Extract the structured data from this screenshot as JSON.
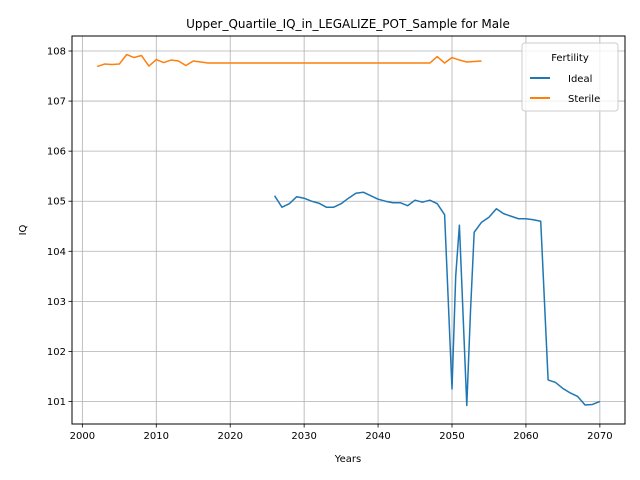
{
  "chart_data": {
    "type": "line",
    "title": "Upper_Quartile_IQ_in_LEGALIZE_POT_Sample for Male",
    "xlabel": "Years",
    "ylabel": "IQ",
    "xlim": [
      1998.6,
      2073.4
    ],
    "ylim": [
      100.55,
      108.3
    ],
    "xticks": [
      2000,
      2010,
      2020,
      2030,
      2040,
      2050,
      2060,
      2070
    ],
    "yticks": [
      101,
      102,
      103,
      104,
      105,
      106,
      107,
      108
    ],
    "grid": true,
    "legend": {
      "title": "Fertility",
      "placement": "top-right"
    },
    "series": [
      {
        "name": "Ideal",
        "color": "#1f77b4",
        "points": [
          [
            2026,
            105.11
          ],
          [
            2027,
            104.88
          ],
          [
            2028,
            104.95
          ],
          [
            2029,
            105.09
          ],
          [
            2030,
            105.06
          ],
          [
            2031,
            105.0
          ],
          [
            2032,
            104.96
          ],
          [
            2033,
            104.88
          ],
          [
            2034,
            104.88
          ],
          [
            2035,
            104.95
          ],
          [
            2036,
            105.06
          ],
          [
            2037,
            105.16
          ],
          [
            2038,
            105.18
          ],
          [
            2039,
            105.11
          ],
          [
            2040,
            105.04
          ],
          [
            2041,
            105.0
          ],
          [
            2042,
            104.97
          ],
          [
            2043,
            104.97
          ],
          [
            2044,
            104.91
          ],
          [
            2045,
            105.02
          ],
          [
            2046,
            104.98
          ],
          [
            2047,
            105.02
          ],
          [
            2048,
            104.95
          ],
          [
            2049,
            104.73
          ],
          [
            2050,
            101.25
          ],
          [
            2050.5,
            103.5
          ],
          [
            2051,
            104.52
          ],
          [
            2052,
            100.92
          ],
          [
            2052.5,
            102.8
          ],
          [
            2053,
            104.38
          ],
          [
            2054,
            104.58
          ],
          [
            2055,
            104.68
          ],
          [
            2056,
            104.85
          ],
          [
            2057,
            104.75
          ],
          [
            2058,
            104.7
          ],
          [
            2059,
            104.65
          ],
          [
            2060,
            104.65
          ],
          [
            2061,
            104.63
          ],
          [
            2062,
            104.6
          ],
          [
            2063,
            101.43
          ],
          [
            2064,
            101.38
          ],
          [
            2065,
            101.26
          ],
          [
            2066,
            101.17
          ],
          [
            2067,
            101.1
          ],
          [
            2068,
            100.93
          ],
          [
            2069,
            100.94
          ],
          [
            2070,
            101.0
          ]
        ]
      },
      {
        "name": "Sterile",
        "color": "#ff7f0e",
        "points": [
          [
            2002,
            107.69
          ],
          [
            2003,
            107.74
          ],
          [
            2004,
            107.73
          ],
          [
            2005,
            107.74
          ],
          [
            2006,
            107.93
          ],
          [
            2007,
            107.87
          ],
          [
            2008,
            107.91
          ],
          [
            2009,
            107.7
          ],
          [
            2010,
            107.83
          ],
          [
            2011,
            107.77
          ],
          [
            2012,
            107.82
          ],
          [
            2013,
            107.8
          ],
          [
            2014,
            107.71
          ],
          [
            2015,
            107.8
          ],
          [
            2016,
            107.78
          ],
          [
            2017,
            107.76
          ],
          [
            2018,
            107.76
          ],
          [
            2019,
            107.76
          ],
          [
            2020,
            107.76
          ],
          [
            2021,
            107.76
          ],
          [
            2022,
            107.76
          ],
          [
            2023,
            107.76
          ],
          [
            2024,
            107.76
          ],
          [
            2025,
            107.76
          ],
          [
            2026,
            107.76
          ],
          [
            2027,
            107.76
          ],
          [
            2028,
            107.76
          ],
          [
            2029,
            107.76
          ],
          [
            2030,
            107.76
          ],
          [
            2031,
            107.76
          ],
          [
            2032,
            107.76
          ],
          [
            2033,
            107.76
          ],
          [
            2034,
            107.76
          ],
          [
            2035,
            107.76
          ],
          [
            2036,
            107.76
          ],
          [
            2037,
            107.76
          ],
          [
            2038,
            107.76
          ],
          [
            2039,
            107.76
          ],
          [
            2040,
            107.76
          ],
          [
            2041,
            107.76
          ],
          [
            2042,
            107.76
          ],
          [
            2043,
            107.76
          ],
          [
            2044,
            107.76
          ],
          [
            2045,
            107.76
          ],
          [
            2046,
            107.76
          ],
          [
            2047,
            107.76
          ],
          [
            2048,
            107.89
          ],
          [
            2049,
            107.76
          ],
          [
            2050,
            107.87
          ],
          [
            2051,
            107.82
          ],
          [
            2052,
            107.78
          ],
          [
            2053,
            107.79
          ],
          [
            2054,
            107.8
          ]
        ]
      }
    ]
  }
}
